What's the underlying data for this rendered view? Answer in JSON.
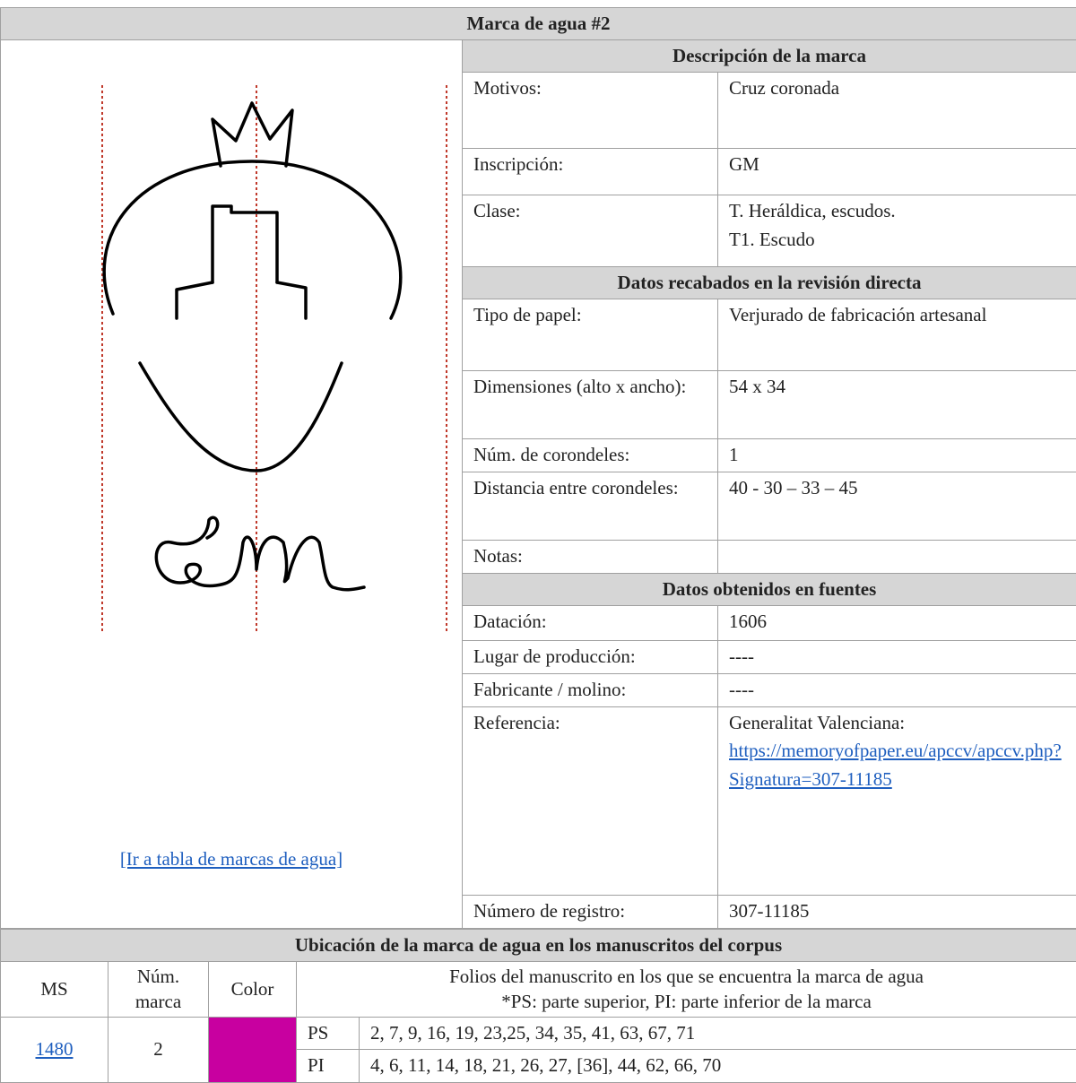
{
  "header": {
    "title": "Marca de agua #2"
  },
  "link": "[Ir a tabla de marcas de agua]",
  "sections": [
    {
      "title": "Descripción de la marca",
      "rows": [
        {
          "label": "Motivos:",
          "value": "Cruz coronada"
        },
        {
          "label": "Inscripción:",
          "value": "GM"
        },
        {
          "label": "Clase:",
          "value": "T. Heráldica, escudos.\nT1. Escudo"
        }
      ]
    },
    {
      "title": "Datos recabados en la revisión directa",
      "rows": [
        {
          "label": "Tipo de papel:",
          "value": "Verjurado de fabricación artesanal"
        },
        {
          "label": "Dimensiones (alto x ancho):",
          "value": "54 x 34"
        },
        {
          "label": "Núm. de corondeles:",
          "value": "1"
        },
        {
          "label": "Distancia entre corondeles:",
          "value": "40 - 30 – 33 – 45"
        },
        {
          "label": "Notas:",
          "value": ""
        }
      ]
    },
    {
      "title": "Datos obtenidos en fuentes",
      "rows": [
        {
          "label": "Datación:",
          "value": "1606"
        },
        {
          "label": "Lugar de producción:",
          "value": "----"
        },
        {
          "label": "Fabricante / molino:",
          "value": "----"
        },
        {
          "label": "Referencia:",
          "value": "Generalitat Valenciana:",
          "url": "https://memoryofpaper.eu/apccv/apccv.php?Signatura=307-11185"
        },
        {
          "label": "Número de registro:",
          "value": "307-11185"
        }
      ]
    }
  ],
  "location": {
    "title": "Ubicación de la marca de agua en los manuscritos del corpus",
    "columns": [
      "MS",
      "Núm. marca",
      "Color",
      "Folios del manuscrito en los que se encuentra la marca de agua",
      "*PS: parte superior, PI: parte inferior de la marca"
    ],
    "rows": [
      {
        "ms": "1480",
        "mark": "2",
        "color": "#c800a0",
        "parts": [
          {
            "part": "PS",
            "folios": "2, 7, 9, 16, 19, 23,25, 34, 35, 41, 63, 67, 71"
          },
          {
            "part": "PI",
            "folios": "4, 6, 11, 14, 18, 21, 26, 27, [36], 44, 62, 66, 70"
          }
        ]
      }
    ]
  }
}
